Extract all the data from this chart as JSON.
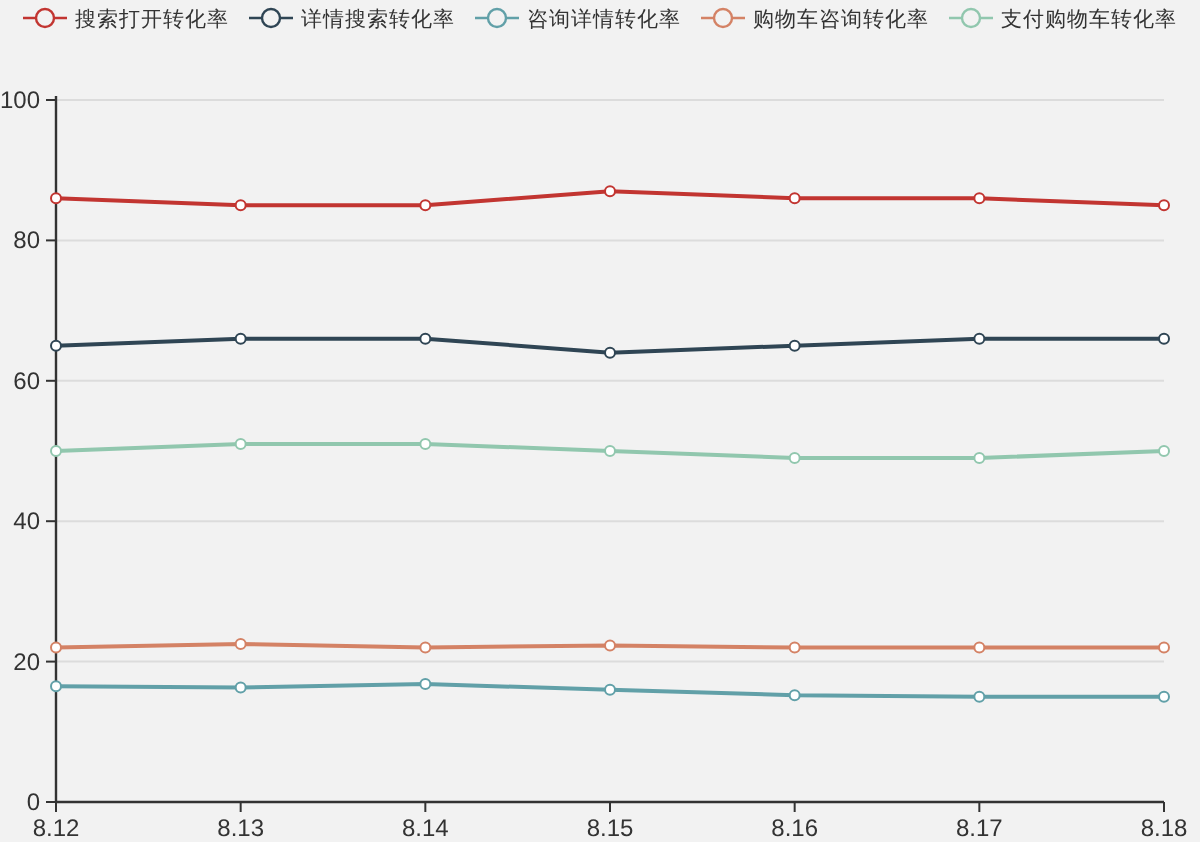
{
  "chart_data": {
    "type": "line",
    "categories": [
      "8.12",
      "8.13",
      "8.14",
      "8.15",
      "8.16",
      "8.17",
      "8.18"
    ],
    "series": [
      {
        "name": "搜索打开转化率",
        "color": "#c23531",
        "values": [
          86,
          85,
          85,
          87,
          86,
          86,
          85
        ]
      },
      {
        "name": "详情搜索转化率",
        "color": "#2f4554",
        "values": [
          65,
          66,
          66,
          64,
          65,
          66,
          66
        ]
      },
      {
        "name": "咨询详情转化率",
        "color": "#61a0a8",
        "values": [
          16.5,
          16.3,
          16.8,
          16,
          15.2,
          15,
          15
        ]
      },
      {
        "name": "购物车咨询转化率",
        "color": "#d48265",
        "values": [
          22,
          22.5,
          22,
          22.3,
          22,
          22,
          22
        ]
      },
      {
        "name": "支付购物车转化率",
        "color": "#91c7ae",
        "values": [
          50,
          51,
          51,
          50,
          49,
          49,
          50
        ]
      }
    ],
    "ylim": [
      0,
      100
    ],
    "yticks": [
      0,
      20,
      40,
      60,
      80,
      100
    ],
    "grid": "y",
    "legend": "top",
    "marker": "circle",
    "line_style": "solid"
  }
}
